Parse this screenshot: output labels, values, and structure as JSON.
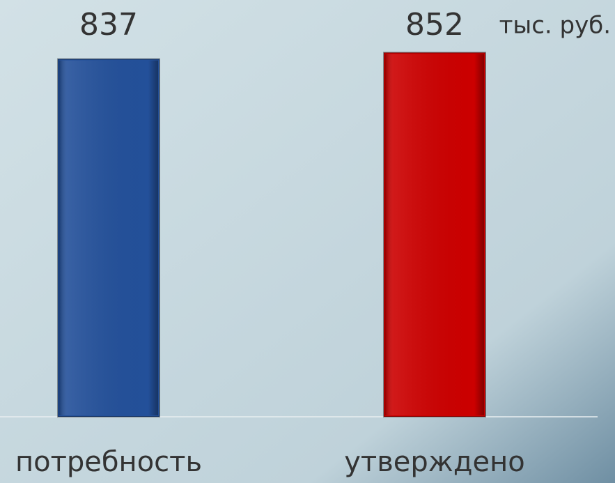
{
  "chart_data": {
    "type": "bar",
    "categories": [
      "потребность",
      "утверждено"
    ],
    "values": [
      837,
      852
    ],
    "colors": [
      "#23509a",
      "#cc0000"
    ],
    "annotation": "тыс. руб.",
    "ylim": [
      0,
      975
    ]
  }
}
